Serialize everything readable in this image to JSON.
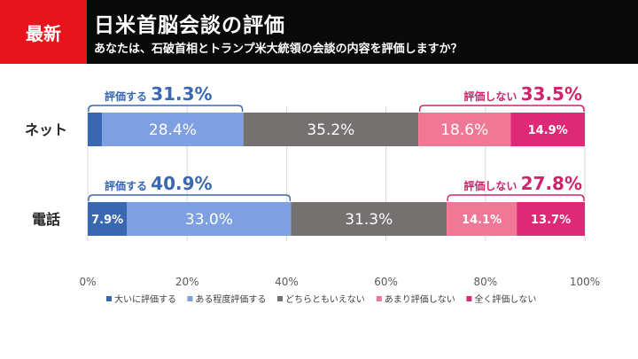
{
  "header": {
    "badge": "最新",
    "title": "日米首脳会談の評価",
    "subtitle": "あなたは、石破首相とトランプ米大統領の会談の内容を評価しますか？",
    "badge_color": "#e8141b",
    "bg_color": "#0a0a0a"
  },
  "chart_data": {
    "type": "bar",
    "orientation": "horizontal",
    "stacked": true,
    "categories": [
      "ネット",
      "電話"
    ],
    "series": [
      {
        "name": "大いに評価する",
        "color": "#3a67b1",
        "values": [
          2.9,
          7.9
        ],
        "labels": [
          "",
          "7.9%"
        ]
      },
      {
        "name": "ある程度評価する",
        "color": "#7ea0e3",
        "values": [
          28.4,
          33.0
        ],
        "labels": [
          "28.4%",
          "33.0%"
        ]
      },
      {
        "name": "どちらともいえない",
        "color": "#767171",
        "values": [
          35.2,
          31.3
        ],
        "labels": [
          "35.2%",
          "31.3%"
        ]
      },
      {
        "name": "あまり評価しない",
        "color": "#f07896",
        "values": [
          18.6,
          14.1
        ],
        "labels": [
          "18.6%",
          "14.1%"
        ]
      },
      {
        "name": "全く評価しない",
        "color": "#de2a76",
        "values": [
          14.9,
          13.7
        ],
        "labels": [
          "14.9%",
          "13.7%"
        ]
      }
    ],
    "xlim": [
      0,
      100
    ],
    "xticks": [
      "0%",
      "20%",
      "40%",
      "60%",
      "80%",
      "100%"
    ],
    "gridlines": true,
    "annotations": [
      {
        "row": 0,
        "from": 0,
        "to": 31.3,
        "prefix": "評価する",
        "value": "31.3%",
        "color": "#3a67b1",
        "align": "start"
      },
      {
        "row": 0,
        "from": 66.6,
        "to": 100,
        "prefix": "評価しない",
        "value": "33.5%",
        "color": "#d1226c",
        "align": "end"
      },
      {
        "row": 1,
        "from": 0,
        "to": 40.9,
        "prefix": "評価する",
        "value": "40.9%",
        "color": "#3a67b1",
        "align": "start"
      },
      {
        "row": 1,
        "from": 72.2,
        "to": 100,
        "prefix": "評価しない",
        "value": "27.8%",
        "color": "#d1226c",
        "align": "end"
      }
    ],
    "legend_position": "bottom"
  }
}
